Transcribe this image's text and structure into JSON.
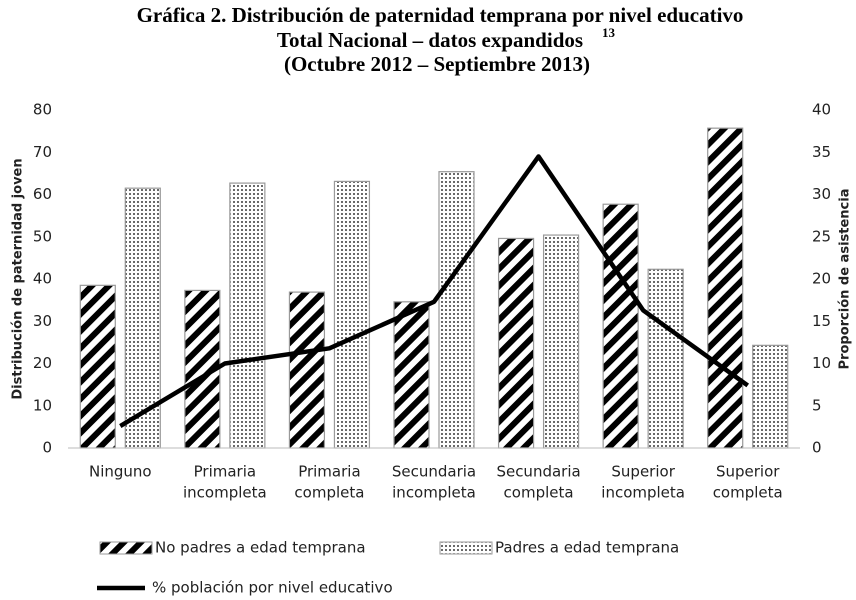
{
  "chart_data": {
    "type": "bar",
    "title": "Gráfica 2. Distribución de paternidad temprana por nivel educativo",
    "subtitle": "Total Nacional – datos expandidos",
    "footnote_mark": "13",
    "period": "(Octubre 2012 – Septiembre 2013)",
    "y_label": "Distribución de paternidad joven",
    "y2_label": "Proporción de asistencia",
    "categories": [
      [
        "Ninguno"
      ],
      [
        "Primaria",
        "incompleta"
      ],
      [
        "Primaria",
        "completa"
      ],
      [
        "Secundaria",
        "incompleta"
      ],
      [
        "Secundaria",
        "completa"
      ],
      [
        "Superior",
        "incompleta"
      ],
      [
        "Superior",
        "completa"
      ]
    ],
    "series": [
      {
        "name": "No padres a edad temprana",
        "type": "bar",
        "pattern": "hatch",
        "color": "#000000",
        "values": [
          38.5,
          37.3,
          36.9,
          34.6,
          49.6,
          57.7,
          75.7
        ]
      },
      {
        "name": "Padres a edad temprana",
        "type": "bar",
        "pattern": "dots",
        "color": "#000000",
        "values": [
          61.5,
          62.7,
          63.1,
          65.4,
          50.4,
          42.3,
          24.3
        ]
      },
      {
        "name": "% población por nivel educativo",
        "type": "line",
        "axis": "y2",
        "color": "#000000",
        "values": [
          2.6,
          10.0,
          11.8,
          17.3,
          34.5,
          16.3,
          7.4
        ]
      }
    ],
    "ylim": [
      0,
      80
    ],
    "yticks": [
      0,
      10,
      20,
      30,
      40,
      50,
      60,
      70,
      80
    ],
    "y2lim": [
      0,
      40
    ],
    "y2ticks": [
      0,
      5,
      10,
      15,
      20,
      25,
      30,
      35,
      40
    ],
    "grid": false
  }
}
